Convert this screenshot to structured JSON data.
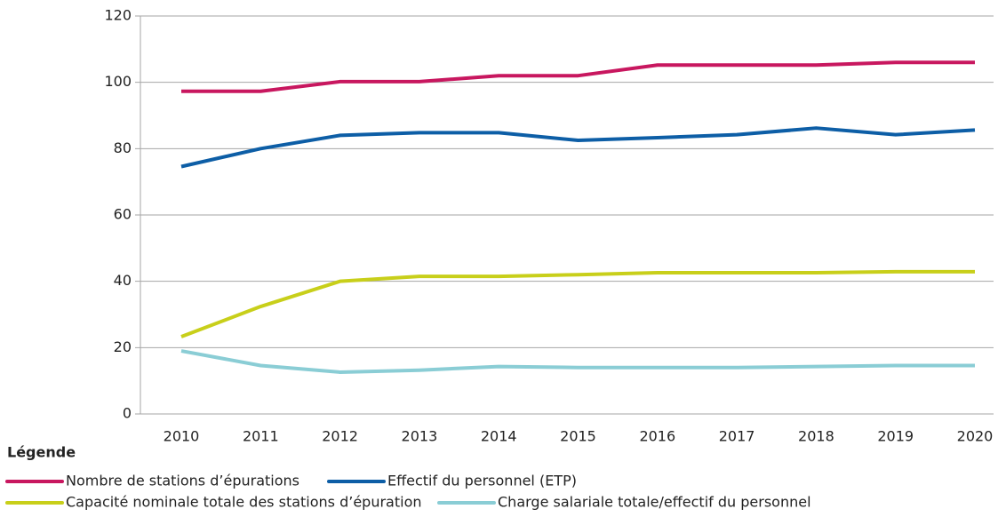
{
  "chart_data": {
    "type": "line",
    "categories": [
      "2010",
      "2011",
      "2012",
      "2013",
      "2014",
      "2015",
      "2016",
      "2017",
      "2018",
      "2019",
      "2020"
    ],
    "ylim": [
      0,
      120
    ],
    "yticks": [
      0,
      20,
      40,
      60,
      80,
      100,
      120
    ],
    "grid": true,
    "legend_title": "Légende",
    "series": [
      {
        "name": "Nombre de stations d’épurations",
        "color": "#c8175f",
        "values": [
          97.3,
          97.3,
          100.2,
          100.2,
          102,
          102,
          105.2,
          105.2,
          105.2,
          106,
          106
        ]
      },
      {
        "name": "Effectif du personnel (ETP)",
        "color": "#0d5ea6",
        "values": [
          74.6,
          80,
          84,
          84.8,
          84.8,
          82.5,
          83.3,
          84.2,
          86.2,
          84.2,
          85.6
        ]
      },
      {
        "name": "Capacité nominale totale des stations d’épuration",
        "color": "#c8cf1a",
        "values": [
          23.3,
          32.4,
          40,
          41.5,
          41.5,
          42,
          42.6,
          42.6,
          42.6,
          42.9,
          42.9
        ]
      },
      {
        "name": "Charge salariale totale/effectif du personnel",
        "color": "#8acdd5",
        "values": [
          19,
          14.6,
          12.6,
          13.2,
          14.3,
          14,
          14,
          14,
          14.3,
          14.6,
          14.6
        ]
      }
    ]
  }
}
